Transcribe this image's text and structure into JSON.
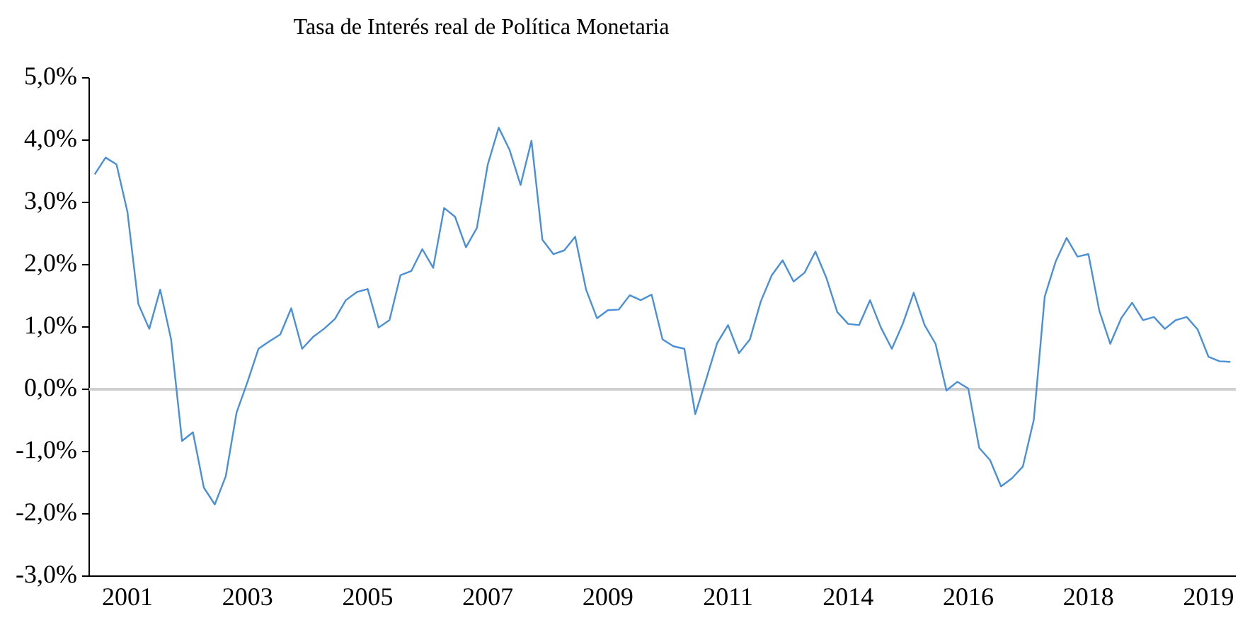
{
  "chart_data": {
    "type": "line",
    "title": "Tasa de Interés real de Política Monetaria",
    "categories": [
      null,
      null,
      null,
      "2001",
      null,
      null,
      null,
      null,
      null,
      null,
      null,
      null,
      null,
      null,
      "2003",
      null,
      null,
      null,
      null,
      null,
      null,
      null,
      null,
      null,
      null,
      "2005",
      null,
      null,
      null,
      null,
      null,
      null,
      null,
      null,
      null,
      null,
      "2007",
      null,
      null,
      null,
      null,
      null,
      null,
      null,
      null,
      null,
      null,
      "2009",
      null,
      null,
      null,
      null,
      null,
      null,
      null,
      null,
      null,
      null,
      "2011",
      null,
      null,
      null,
      null,
      null,
      null,
      null,
      null,
      null,
      null,
      "2014",
      null,
      null,
      null,
      null,
      null,
      null,
      null,
      null,
      null,
      null,
      "2016",
      null,
      null,
      null,
      null,
      null,
      null,
      null,
      null,
      null,
      null,
      "2018",
      null,
      null,
      null,
      null,
      null,
      null,
      null,
      null,
      null,
      null,
      "2019",
      null,
      null
    ],
    "series": [
      {
        "color": "#4a90d9",
        "values": [
          3.45,
          3.72,
          3.61,
          2.85,
          1.37,
          0.97,
          1.6,
          0.8,
          -0.83,
          -0.69,
          -1.58,
          -1.85,
          -1.4,
          -0.37,
          0.12,
          0.65,
          0.77,
          0.88,
          1.3,
          0.65,
          0.84,
          0.97,
          1.13,
          1.43,
          1.56,
          1.61,
          0.99,
          1.11,
          1.83,
          1.9,
          2.25,
          1.95,
          2.91,
          2.77,
          2.28,
          2.59,
          3.61,
          4.2,
          3.84,
          3.28,
          3.99,
          2.4,
          2.17,
          2.23,
          2.45,
          1.6,
          1.14,
          1.27,
          1.28,
          1.51,
          1.43,
          1.52,
          0.8,
          0.69,
          0.65,
          -0.4,
          0.16,
          0.74,
          1.03,
          0.58,
          0.8,
          1.41,
          1.83,
          2.07,
          1.73,
          1.87,
          2.21,
          1.79,
          1.24,
          1.05,
          1.03,
          1.43,
          0.99,
          0.65,
          1.05,
          1.55,
          1.03,
          0.73,
          -0.02,
          0.12,
          0.01,
          -0.94,
          -1.14,
          -1.56,
          -1.43,
          -1.24,
          -0.49,
          1.49,
          2.05,
          2.43,
          2.13,
          2.17,
          1.26,
          0.73,
          1.14,
          1.39,
          1.11,
          1.16,
          0.97,
          1.11,
          1.16,
          0.96,
          0.52,
          0.45,
          0.44
        ]
      }
    ],
    "ylim": [
      -3,
      5
    ],
    "yticks": [
      {
        "value": -3,
        "label": "-3,0%"
      },
      {
        "value": -2,
        "label": "-2,0%"
      },
      {
        "value": -1,
        "label": "-1,0%"
      },
      {
        "value": 0,
        "label": "0,0%"
      },
      {
        "value": 1,
        "label": "1,0%"
      },
      {
        "value": 2,
        "label": "2,0%"
      },
      {
        "value": 3,
        "label": "3,0%"
      },
      {
        "value": 4,
        "label": "4,0%"
      },
      {
        "value": 5,
        "label": "5,0%"
      }
    ],
    "ref_lines": [
      {
        "axis": "y",
        "value": 0,
        "color": "#d0d0d0"
      }
    ],
    "grid": false,
    "marker": "none",
    "line_style": "solid"
  }
}
